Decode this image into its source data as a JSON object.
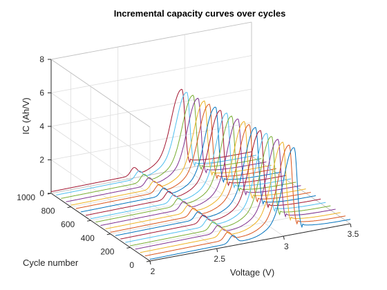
{
  "chart_data": {
    "type": "line",
    "plot_style": "3d-waterfall",
    "title": "Incremental capacity curves over cycles",
    "xlabel": "Voltage (V)",
    "ylabel": "Cycle number",
    "zlabel": "IC (Ah/V)",
    "xlim": [
      2,
      3.5
    ],
    "ylim": [
      0,
      1000
    ],
    "zlim": [
      0,
      8
    ],
    "x_ticks": [
      "2",
      "2.5",
      "3",
      "3.5"
    ],
    "y_ticks": [
      "0",
      "200",
      "400",
      "600",
      "800",
      "1000"
    ],
    "z_ticks": [
      "0",
      "2",
      "4",
      "6",
      "8"
    ],
    "grid": true,
    "colors": [
      "#0072bd",
      "#d95319",
      "#edb120",
      "#7e2f8e",
      "#77ac30",
      "#4dbeee",
      "#a2142f"
    ],
    "cycles": [
      0,
      50,
      100,
      150,
      200,
      250,
      300,
      350,
      400,
      450,
      500,
      550,
      600,
      650,
      700,
      750,
      800,
      850,
      900,
      950,
      1000
    ],
    "peak_voltage_by_cycle": [
      3.08,
      3.08,
      3.07,
      3.07,
      3.06,
      3.06,
      3.05,
      3.05,
      3.04,
      3.04,
      3.03,
      3.02,
      3.02,
      3.01,
      3.01,
      3.0,
      3.0,
      2.99,
      2.99,
      2.98,
      2.98
    ],
    "peak_ic_by_cycle": [
      5.15,
      5.1,
      5.08,
      5.05,
      5.04,
      5.02,
      5.0,
      4.98,
      4.97,
      4.95,
      4.92,
      4.9,
      4.88,
      4.86,
      4.85,
      4.83,
      4.82,
      4.8,
      4.78,
      4.77,
      4.75
    ],
    "secondary_peak_voltage": 2.62,
    "secondary_peak_ic": 0.45,
    "baseline_ic": 0.1
  }
}
